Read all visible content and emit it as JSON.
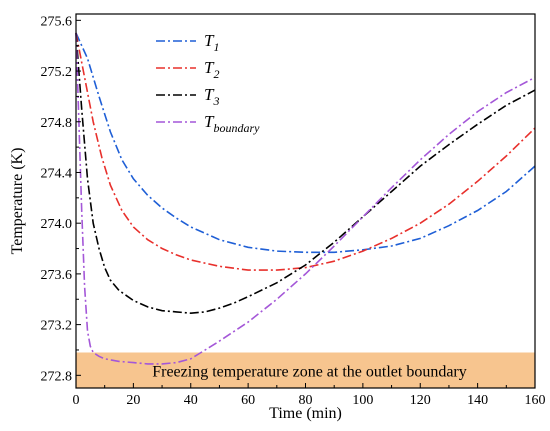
{
  "chart_data": {
    "type": "line",
    "xlabel": "Time (min)",
    "ylabel": "Temperature (K)",
    "xlim": [
      0,
      160
    ],
    "ylim": [
      272.7,
      275.65
    ],
    "x_ticks": [
      "0",
      "20",
      "40",
      "60",
      "80",
      "100",
      "120",
      "140",
      "160"
    ],
    "y_ticks": [
      "272.8",
      "273.2",
      "273.6",
      "274.0",
      "274.4",
      "274.8",
      "275.2",
      "275.6"
    ],
    "legend_position": "top-center",
    "grid": false,
    "series": [
      {
        "name": "T",
        "sub": "1",
        "color": "#1f5fd6",
        "x": [
          0,
          4,
          8,
          12,
          16,
          20,
          25,
          30,
          35,
          40,
          45,
          50,
          60,
          70,
          80,
          90,
          100,
          110,
          120,
          130,
          140,
          150,
          160
        ],
        "y": [
          275.5,
          275.3,
          275.0,
          274.72,
          274.5,
          274.35,
          274.22,
          274.12,
          274.04,
          273.97,
          273.92,
          273.87,
          273.81,
          273.78,
          273.77,
          273.77,
          273.79,
          273.82,
          273.88,
          273.98,
          274.1,
          274.25,
          274.45
        ]
      },
      {
        "name": "T",
        "sub": "2",
        "color": "#e8302c",
        "x": [
          0,
          3,
          6,
          9,
          12,
          16,
          20,
          25,
          30,
          35,
          40,
          50,
          60,
          70,
          80,
          90,
          100,
          110,
          120,
          130,
          140,
          150,
          160
        ],
        "y": [
          275.5,
          275.15,
          274.8,
          274.52,
          274.3,
          274.1,
          273.97,
          273.87,
          273.8,
          273.75,
          273.71,
          273.66,
          273.63,
          273.63,
          273.65,
          273.7,
          273.78,
          273.88,
          274.0,
          274.15,
          274.33,
          274.53,
          274.75
        ]
      },
      {
        "name": "T",
        "sub": "3",
        "color": "#000000",
        "x": [
          0,
          2,
          4,
          6,
          8,
          10,
          12,
          15,
          20,
          25,
          30,
          35,
          40,
          45,
          50,
          55,
          60,
          70,
          80,
          90,
          100,
          110,
          120,
          130,
          140,
          150,
          160
        ],
        "y": [
          275.5,
          274.9,
          274.35,
          274.0,
          273.8,
          273.65,
          273.55,
          273.47,
          273.39,
          273.34,
          273.31,
          273.3,
          273.29,
          273.3,
          273.33,
          273.37,
          273.42,
          273.53,
          273.67,
          273.85,
          274.05,
          274.25,
          274.45,
          274.62,
          274.78,
          274.93,
          275.05
        ]
      },
      {
        "name": "T",
        "sub": "boundary",
        "color": "#a457d8",
        "x": [
          0,
          1,
          2,
          3,
          4,
          5,
          6,
          8,
          10,
          15,
          20,
          25,
          30,
          35,
          40,
          45,
          50,
          60,
          70,
          80,
          90,
          100,
          110,
          120,
          130,
          140,
          150,
          160
        ],
        "y": [
          275.5,
          274.8,
          274.1,
          273.5,
          273.15,
          273.03,
          272.98,
          272.95,
          272.93,
          272.91,
          272.9,
          272.89,
          272.89,
          272.9,
          272.93,
          273.0,
          273.07,
          273.22,
          273.4,
          273.6,
          273.82,
          274.05,
          274.28,
          274.5,
          274.7,
          274.88,
          275.03,
          275.15
        ]
      }
    ],
    "zone": {
      "label": "Freezing temperature zone at the outlet boundary",
      "y_low": 272.7,
      "y_high": 272.98,
      "color": "#f7c58f"
    }
  }
}
